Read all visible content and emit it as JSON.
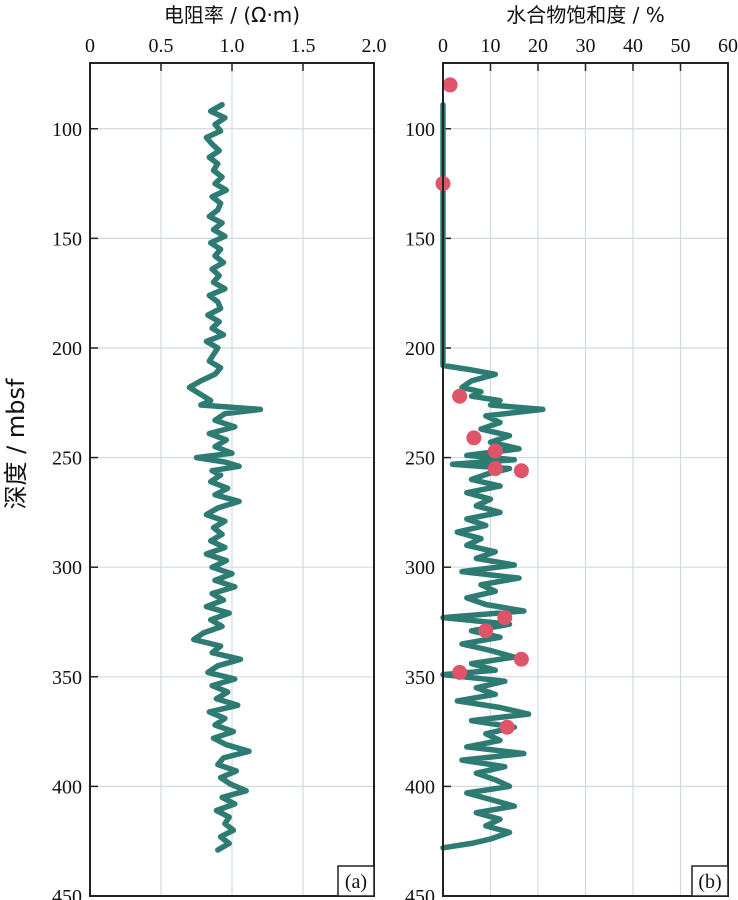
{
  "figure": {
    "ylabel": "深度 / mbsf",
    "depth_ticks": [
      "100",
      "150",
      "200",
      "250",
      "300",
      "350",
      "400",
      "450"
    ],
    "colors": {
      "curve": "#2e7b73",
      "points": "#e0546a",
      "grid": "#cfdcdf",
      "frame": "#222222"
    }
  },
  "chart_data": [
    {
      "type": "line",
      "panel_label": "(a)",
      "xlabel": "电阻率 / (Ω·m)",
      "x_ticks": [
        "0",
        "0.5",
        "1.0",
        "1.5",
        "2.0"
      ],
      "xlim": [
        0,
        2.0
      ],
      "ylim": [
        450,
        70
      ],
      "grid": true,
      "series": [
        {
          "depth": [
            89,
            92,
            95,
            98,
            101,
            104,
            107,
            110,
            113,
            116,
            119,
            122,
            125,
            128,
            131,
            134,
            137,
            140,
            143,
            146,
            149,
            152,
            155,
            158,
            161,
            164,
            167,
            170,
            173,
            176,
            179,
            182,
            185,
            188,
            191,
            194,
            197,
            200,
            203,
            206,
            209,
            212,
            215,
            218,
            220,
            222,
            224,
            226,
            228,
            230,
            233,
            236,
            239,
            242,
            245,
            248,
            250,
            252,
            254,
            256,
            258,
            261,
            264,
            267,
            270,
            273,
            276,
            279,
            282,
            285,
            288,
            291,
            294,
            297,
            300,
            303,
            306,
            309,
            312,
            315,
            318,
            321,
            324,
            327,
            330,
            333,
            336,
            339,
            342,
            345,
            348,
            351,
            354,
            357,
            360,
            363,
            366,
            369,
            372,
            375,
            378,
            381,
            384,
            387,
            390,
            393,
            396,
            399,
            402,
            405,
            408,
            411,
            414,
            417,
            420,
            423,
            426,
            429
          ],
          "values": [
            0.93,
            0.85,
            0.95,
            0.88,
            0.92,
            0.82,
            0.86,
            0.91,
            0.84,
            0.9,
            0.87,
            0.93,
            0.88,
            0.96,
            0.86,
            0.92,
            0.9,
            0.84,
            0.93,
            0.87,
            0.95,
            0.85,
            0.92,
            0.88,
            0.94,
            0.86,
            0.91,
            0.87,
            0.95,
            0.84,
            0.9,
            0.92,
            0.83,
            0.91,
            0.86,
            0.94,
            0.82,
            0.9,
            0.87,
            0.84,
            0.92,
            0.88,
            0.78,
            0.7,
            0.75,
            0.8,
            0.85,
            0.78,
            1.2,
            0.95,
            0.88,
            1.02,
            0.84,
            0.96,
            0.88,
            1.0,
            0.75,
            0.95,
            1.05,
            0.86,
            0.92,
            0.85,
            0.97,
            0.88,
            1.05,
            0.9,
            0.82,
            0.95,
            0.87,
            0.93,
            0.85,
            0.95,
            0.82,
            0.96,
            0.86,
            1.0,
            0.88,
            1.02,
            0.86,
            0.94,
            0.82,
            0.98,
            0.85,
            0.93,
            0.8,
            0.73,
            0.92,
            0.86,
            1.06,
            0.9,
            0.83,
            1.02,
            0.86,
            0.97,
            0.89,
            1.04,
            0.84,
            0.95,
            0.88,
            1.01,
            0.87,
            0.96,
            1.12,
            0.94,
            0.9,
            1.03,
            0.92,
            0.99,
            1.1,
            0.93,
            1.02,
            0.89,
            0.98,
            0.95,
            1.01,
            0.92,
            0.98,
            0.9
          ]
        }
      ]
    },
    {
      "type": "line",
      "panel_label": "(b)",
      "xlabel": "水合物饱和度 / %",
      "x_ticks": [
        "0",
        "10",
        "20",
        "30",
        "40",
        "50",
        "60"
      ],
      "xlim": [
        0,
        60
      ],
      "ylim": [
        450,
        70
      ],
      "grid": true,
      "series": [
        {
          "depth": [
            89,
            100,
            150,
            200,
            208,
            210,
            212,
            215,
            218,
            220,
            222,
            224,
            226,
            228,
            231,
            234,
            237,
            240,
            243,
            246,
            249,
            251,
            253,
            255,
            257,
            260,
            263,
            266,
            269,
            272,
            275,
            278,
            281,
            284,
            287,
            290,
            293,
            296,
            299,
            302,
            305,
            308,
            311,
            314,
            317,
            320,
            323,
            326,
            329,
            332,
            335,
            338,
            341,
            344,
            347,
            349,
            352,
            355,
            358,
            361,
            364,
            367,
            370,
            373,
            376,
            379,
            382,
            385,
            388,
            391,
            394,
            397,
            400,
            403,
            406,
            409,
            412,
            415,
            418,
            421,
            424,
            426,
            428
          ],
          "values": [
            0,
            0,
            0,
            0,
            0,
            6,
            11,
            6,
            4,
            8,
            6,
            12,
            10,
            21,
            9,
            12,
            8,
            14,
            10,
            16,
            5,
            15,
            2,
            14,
            10,
            6,
            12,
            5,
            10,
            7,
            12,
            5,
            9,
            3,
            8,
            5,
            11,
            7,
            15,
            4,
            16,
            8,
            11,
            5,
            9,
            17,
            0,
            14,
            6,
            12,
            4,
            10,
            15,
            6,
            11,
            0,
            13,
            7,
            11,
            3,
            12,
            18,
            6,
            15,
            9,
            12,
            5,
            17,
            4,
            13,
            7,
            11,
            14,
            5,
            10,
            15,
            7,
            12,
            9,
            14,
            10,
            6,
            0
          ]
        }
      ],
      "points": {
        "depth": [
          80,
          125,
          222,
          241,
          247,
          255,
          256,
          323,
          329,
          342,
          348,
          373
        ],
        "values": [
          1.5,
          0,
          3.5,
          6.5,
          11,
          11,
          16.5,
          13,
          9,
          16.5,
          3.5,
          13.5
        ]
      }
    }
  ]
}
